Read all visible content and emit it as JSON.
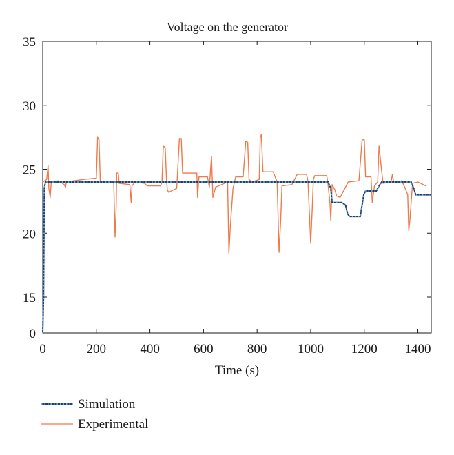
{
  "chart_data": {
    "type": "line",
    "title": "Voltage on the generator",
    "xlabel": "Time (s)",
    "ylabel": "",
    "xlim": [
      0,
      1450
    ],
    "ylim_display": [
      0,
      35
    ],
    "y_axis_break": "axis jumps from 0 to 15 (broken scale)",
    "xticks": [
      0,
      200,
      400,
      600,
      800,
      1000,
      1200,
      1400
    ],
    "yticks": [
      0,
      15,
      20,
      25,
      30,
      35
    ],
    "grid": false,
    "legend_position": "bottom-left, below plot",
    "colors": {
      "simulation_line": "#1f3f6e",
      "simulation_dots": "#6fb0d8",
      "experimental": "#ef7a4a"
    },
    "series": [
      {
        "name": "Simulation",
        "style": "dotted",
        "points": [
          [
            0,
            0
          ],
          [
            3,
            15
          ],
          [
            6,
            23.5
          ],
          [
            10,
            24
          ],
          [
            200,
            24
          ],
          [
            400,
            24
          ],
          [
            600,
            24
          ],
          [
            800,
            24
          ],
          [
            1000,
            24
          ],
          [
            1060,
            24
          ],
          [
            1065,
            24
          ],
          [
            1075,
            23.5
          ],
          [
            1080,
            22.4
          ],
          [
            1115,
            22.4
          ],
          [
            1130,
            22.2
          ],
          [
            1138,
            21.5
          ],
          [
            1145,
            21.3
          ],
          [
            1185,
            21.3
          ],
          [
            1192,
            22.2
          ],
          [
            1198,
            23.0
          ],
          [
            1205,
            23.3
          ],
          [
            1245,
            23.3
          ],
          [
            1255,
            23.7
          ],
          [
            1265,
            24
          ],
          [
            1375,
            24
          ],
          [
            1385,
            23.5
          ],
          [
            1392,
            23
          ],
          [
            1450,
            23
          ]
        ]
      },
      {
        "name": "Experimental",
        "style": "solid",
        "points": [
          [
            0,
            24
          ],
          [
            15,
            24.2
          ],
          [
            20,
            25.3
          ],
          [
            23,
            23.5
          ],
          [
            28,
            22.8
          ],
          [
            32,
            24.0
          ],
          [
            60,
            24.1
          ],
          [
            80,
            23.8
          ],
          [
            85,
            23.6
          ],
          [
            88,
            24
          ],
          [
            150,
            24.2
          ],
          [
            200,
            24.3
          ],
          [
            205,
            27.5
          ],
          [
            210,
            27.3
          ],
          [
            215,
            24.0
          ],
          [
            230,
            24.0
          ],
          [
            265,
            24.0
          ],
          [
            270,
            19.7
          ],
          [
            274,
            22.0
          ],
          [
            276,
            24.7
          ],
          [
            282,
            24.7
          ],
          [
            285,
            23.9
          ],
          [
            325,
            23.8
          ],
          [
            330,
            22.4
          ],
          [
            333,
            23.7
          ],
          [
            345,
            24.0
          ],
          [
            380,
            23.9
          ],
          [
            390,
            23.7
          ],
          [
            440,
            23.7
          ],
          [
            445,
            24.0
          ],
          [
            450,
            26.8
          ],
          [
            457,
            26.7
          ],
          [
            462,
            24.2
          ],
          [
            465,
            23.4
          ],
          [
            470,
            23.2
          ],
          [
            500,
            23.5
          ],
          [
            510,
            27.4
          ],
          [
            517,
            27.4
          ],
          [
            522,
            24.7
          ],
          [
            575,
            24.7
          ],
          [
            578,
            22.8
          ],
          [
            583,
            24.4
          ],
          [
            615,
            24.4
          ],
          [
            622,
            23.6
          ],
          [
            630,
            26.0
          ],
          [
            635,
            22.8
          ],
          [
            645,
            23.6
          ],
          [
            690,
            24.0
          ],
          [
            695,
            18.4
          ],
          [
            700,
            20.5
          ],
          [
            710,
            23.5
          ],
          [
            720,
            24.4
          ],
          [
            748,
            24.4
          ],
          [
            758,
            27.2
          ],
          [
            765,
            27.1
          ],
          [
            770,
            24.2
          ],
          [
            780,
            24.0
          ],
          [
            808,
            24.2
          ],
          [
            812,
            27.5
          ],
          [
            816,
            27.7
          ],
          [
            822,
            24.8
          ],
          [
            860,
            24.8
          ],
          [
            875,
            24.0
          ],
          [
            882,
            18.5
          ],
          [
            888,
            21.0
          ],
          [
            893,
            23.7
          ],
          [
            930,
            23.8
          ],
          [
            950,
            24.6
          ],
          [
            985,
            24.6
          ],
          [
            990,
            24.0
          ],
          [
            1000,
            19.2
          ],
          [
            1005,
            21.5
          ],
          [
            1010,
            24.2
          ],
          [
            1015,
            24.5
          ],
          [
            1060,
            24.5
          ],
          [
            1065,
            23.8
          ],
          [
            1072,
            22.3
          ],
          [
            1075,
            21.0
          ],
          [
            1080,
            23.8
          ],
          [
            1090,
            23.4
          ],
          [
            1097,
            22.9
          ],
          [
            1110,
            22.8
          ],
          [
            1140,
            24.0
          ],
          [
            1180,
            24.1
          ],
          [
            1192,
            27.3
          ],
          [
            1200,
            27.3
          ],
          [
            1205,
            24.4
          ],
          [
            1225,
            24.4
          ],
          [
            1230,
            22.4
          ],
          [
            1238,
            23.7
          ],
          [
            1250,
            24.0
          ],
          [
            1255,
            26.8
          ],
          [
            1263,
            25.2
          ],
          [
            1270,
            23.9
          ],
          [
            1300,
            24.0
          ],
          [
            1305,
            24.6
          ],
          [
            1310,
            24.0
          ],
          [
            1325,
            24.0
          ],
          [
            1340,
            24.1
          ],
          [
            1355,
            23.4
          ],
          [
            1362,
            23.0
          ],
          [
            1366,
            20.2
          ],
          [
            1370,
            21.0
          ],
          [
            1380,
            23.9
          ],
          [
            1400,
            24.0
          ],
          [
            1430,
            23.7
          ]
        ]
      }
    ]
  }
}
